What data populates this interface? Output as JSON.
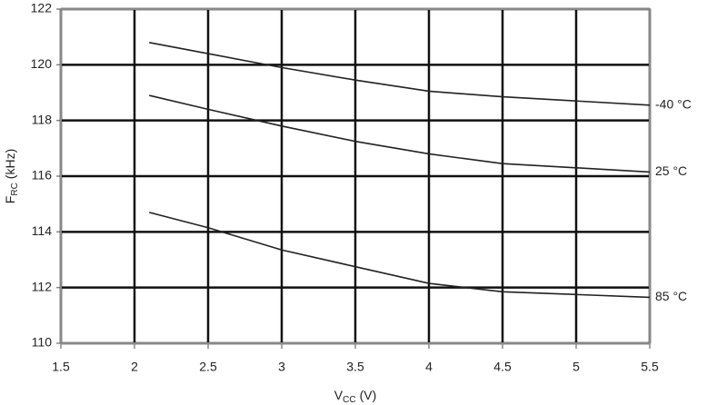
{
  "chart_data": {
    "type": "line",
    "xlabel": {
      "symbol": "V",
      "subscript": "CC",
      "unit": "(V)"
    },
    "ylabel": {
      "symbol": "F",
      "subscript": "RC",
      "unit": "(kHz)"
    },
    "x": [
      2.1,
      2.5,
      3,
      3.5,
      4,
      4.5,
      5,
      5.5
    ],
    "series": [
      {
        "name": "-40 °C",
        "color": "#222222",
        "values": [
          120.8,
          120.4,
          119.9,
          119.45,
          119.05,
          118.85,
          118.7,
          118.55
        ]
      },
      {
        "name": "25 °C",
        "color": "#222222",
        "values": [
          118.9,
          118.4,
          117.8,
          117.25,
          116.8,
          116.45,
          116.3,
          116.15
        ]
      },
      {
        "name": "85 °C",
        "color": "#222222",
        "values": [
          114.7,
          114.15,
          113.35,
          112.75,
          112.15,
          111.85,
          111.75,
          111.65
        ]
      }
    ],
    "xlim": [
      1.5,
      5.5
    ],
    "xticks": [
      1.5,
      2,
      2.5,
      3,
      3.5,
      4,
      4.5,
      5,
      5.5
    ],
    "ylim": [
      110,
      122
    ],
    "yticks": [
      110,
      112,
      114,
      116,
      118,
      120,
      122
    ],
    "grid": true
  }
}
